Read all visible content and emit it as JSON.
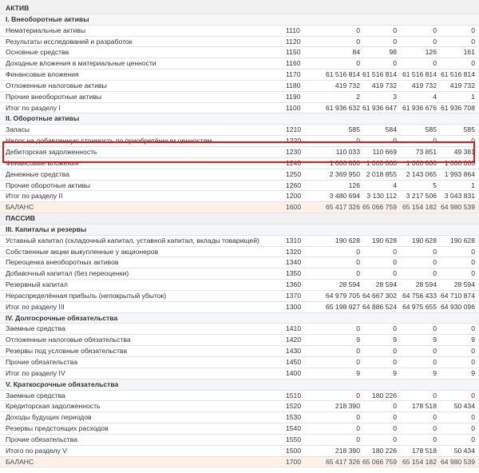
{
  "rows": [
    {
      "type": "part",
      "name": "АКТИВ"
    },
    {
      "type": "sect",
      "name": "I. Внеоборотные активы"
    },
    {
      "type": "item",
      "name": "Нематериальные активы",
      "code": "1110",
      "v": [
        "0",
        "0",
        "0",
        "0"
      ]
    },
    {
      "type": "item",
      "name": "Результаты исследований и разработок",
      "code": "1120",
      "v": [
        "0",
        "0",
        "0",
        "0"
      ]
    },
    {
      "type": "item",
      "name": "Основные средства",
      "code": "1150",
      "v": [
        "84",
        "98",
        "126",
        "161"
      ]
    },
    {
      "type": "item",
      "name": "Доходные вложения в материальные ценности",
      "code": "1160",
      "v": [
        "0",
        "0",
        "0",
        "0"
      ]
    },
    {
      "type": "item",
      "name": "Финансовые вложения",
      "code": "1170",
      "v": [
        "61 516 814",
        "61 516 814",
        "61 516 814",
        "61 516 814"
      ]
    },
    {
      "type": "item",
      "name": "Отложенные налоговые активы",
      "code": "1180",
      "v": [
        "419 732",
        "419 732",
        "419 732",
        "419 732"
      ]
    },
    {
      "type": "item",
      "name": "Прочие внеоборотные активы",
      "code": "1190",
      "v": [
        "2",
        "3",
        "4",
        "1"
      ]
    },
    {
      "type": "item",
      "name": "Итог по разделу I",
      "code": "1100",
      "v": [
        "61 936 632",
        "61 936 647",
        "61 936 676",
        "61 936 708"
      ]
    },
    {
      "type": "sect",
      "name": "II. Оборотные активы"
    },
    {
      "type": "item",
      "name": "Запасы",
      "code": "1210",
      "v": [
        "585",
        "584",
        "585",
        "585"
      ]
    },
    {
      "type": "item",
      "name": "Налог на добавленную стоимость по приобретённым ценностям",
      "code": "1220",
      "v": [
        "0",
        "0",
        "0",
        "0"
      ]
    },
    {
      "type": "item",
      "name": "Дебиторская задолженность",
      "code": "1230",
      "v": [
        "110 033",
        "110 669",
        "73 851",
        "49 381"
      ]
    },
    {
      "type": "item",
      "name": "Финансовые вложения",
      "code": "1240",
      "v": [
        "1 000 000",
        "1 000 000",
        "1 000 000",
        "1 000 000"
      ]
    },
    {
      "type": "item",
      "name": "Денежные средства",
      "code": "1250",
      "v": [
        "2 369 950",
        "2 018 855",
        "2 143 065",
        "1 993 864"
      ]
    },
    {
      "type": "item",
      "name": "Прочие оборотные активы",
      "code": "1260",
      "v": [
        "126",
        "4",
        "5",
        "1"
      ]
    },
    {
      "type": "item",
      "name": "Итог по разделу II",
      "code": "1200",
      "v": [
        "3 480 694",
        "3 130 112",
        "3 217 506",
        "3 043 831"
      ]
    },
    {
      "type": "total",
      "name": "БАЛАНС",
      "code": "1600",
      "v": [
        "65 417 326",
        "65 066 759",
        "65 154 182",
        "64 980 539"
      ]
    },
    {
      "type": "part",
      "name": "ПАССИВ"
    },
    {
      "type": "sect",
      "name": "III. Капиталы и резервы"
    },
    {
      "type": "item",
      "name": "Уставный капитал (складочный капитал, уставной капитал, вклады товарищей)",
      "code": "1310",
      "v": [
        "190 628",
        "190 628",
        "190 628",
        "190 628"
      ]
    },
    {
      "type": "item",
      "name": "Собственные акции выкупленные у акционеров",
      "code": "1320",
      "v": [
        "0",
        "0",
        "0",
        "0"
      ]
    },
    {
      "type": "item",
      "name": "Переоценка внеоборотных активов",
      "code": "1340",
      "v": [
        "0",
        "0",
        "0",
        "0"
      ]
    },
    {
      "type": "item",
      "name": "Добавочный капитал (без переоценки)",
      "code": "1350",
      "v": [
        "0",
        "0",
        "0",
        "0"
      ]
    },
    {
      "type": "item",
      "name": "Резервный капитал",
      "code": "1360",
      "v": [
        "28 594",
        "28 594",
        "28 594",
        "28 594"
      ]
    },
    {
      "type": "item",
      "name": "Нераспределённая прибыль (непокрытый убыток)",
      "code": "1370",
      "v": [
        "64 979 705",
        "64 667 302",
        "64 756 433",
        "64 710 874"
      ]
    },
    {
      "type": "item",
      "name": "Итог по разделу III",
      "code": "1300",
      "v": [
        "65 198 927",
        "64 886 524",
        "64 975 655",
        "64 930 096"
      ]
    },
    {
      "type": "sect",
      "name": "IV. Долгосрочные обязательства"
    },
    {
      "type": "item",
      "name": "Заемные средства",
      "code": "1410",
      "v": [
        "0",
        "0",
        "0",
        "0"
      ]
    },
    {
      "type": "item",
      "name": "Отложенные налоговые обязательства",
      "code": "1420",
      "v": [
        "9",
        "9",
        "9",
        "9"
      ]
    },
    {
      "type": "item",
      "name": "Резервы под условные обязательства",
      "code": "1430",
      "v": [
        "0",
        "0",
        "0",
        "0"
      ]
    },
    {
      "type": "item",
      "name": "Прочие обязательства",
      "code": "1450",
      "v": [
        "0",
        "0",
        "0",
        "0"
      ]
    },
    {
      "type": "item",
      "name": "Итог по разделу IV",
      "code": "1400",
      "v": [
        "9",
        "9",
        "9",
        "9"
      ]
    },
    {
      "type": "sect",
      "name": "V. Краткосрочные обязательства"
    },
    {
      "type": "item",
      "name": "Заемные средства",
      "code": "1510",
      "v": [
        "0",
        "180 226",
        "0",
        "0"
      ]
    },
    {
      "type": "item",
      "name": "Кредиторская задолженность",
      "code": "1520",
      "v": [
        "218 390",
        "0",
        "178 518",
        "50 434"
      ]
    },
    {
      "type": "item",
      "name": "Доходы будущих периодов",
      "code": "1530",
      "v": [
        "0",
        "0",
        "0",
        "0"
      ]
    },
    {
      "type": "item",
      "name": "Резервы предстоящих расходов",
      "code": "1540",
      "v": [
        "0",
        "0",
        "0",
        "0"
      ]
    },
    {
      "type": "item",
      "name": "Прочие обязательства",
      "code": "1550",
      "v": [
        "0",
        "0",
        "0",
        "0"
      ]
    },
    {
      "type": "item",
      "name": "Итого по разделу V",
      "code": "1500",
      "v": [
        "218 390",
        "180 226",
        "178 518",
        "50 434"
      ]
    },
    {
      "type": "total",
      "name": "БАЛАНС",
      "code": "1700",
      "v": [
        "65 417 326",
        "65 066 759",
        "65 154 182",
        "64 980 539"
      ]
    }
  ]
}
